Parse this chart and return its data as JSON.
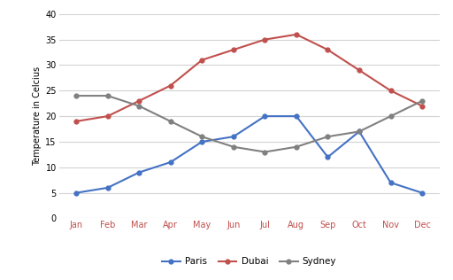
{
  "months": [
    "Jan",
    "Feb",
    "Mar",
    "Apr",
    "May",
    "Jun",
    "Jul",
    "Aug",
    "Sep",
    "Oct",
    "Nov",
    "Dec"
  ],
  "paris": [
    5,
    6,
    9,
    11,
    15,
    16,
    20,
    20,
    12,
    17,
    7,
    5
  ],
  "dubai": [
    19,
    20,
    23,
    26,
    31,
    33,
    35,
    36,
    33,
    29,
    25,
    22
  ],
  "sydney": [
    24,
    24,
    22,
    19,
    16,
    14,
    13,
    14,
    16,
    17,
    20,
    23
  ],
  "paris_color": "#4472C4",
  "dubai_color": "#C0504D",
  "sydney_color": "#808080",
  "ylabel": "Temperature in Celcius",
  "ylim": [
    0,
    40
  ],
  "yticks": [
    0,
    5,
    10,
    15,
    20,
    25,
    30,
    35,
    40
  ],
  "background_color": "#FFFFFF",
  "grid_color": "#D3D3D3",
  "tick_color": "#C0504D",
  "legend_labels": [
    "Paris",
    "Dubai",
    "Sydney"
  ],
  "tick_fontsize": 7,
  "ylabel_fontsize": 7,
  "legend_fontsize": 7.5
}
